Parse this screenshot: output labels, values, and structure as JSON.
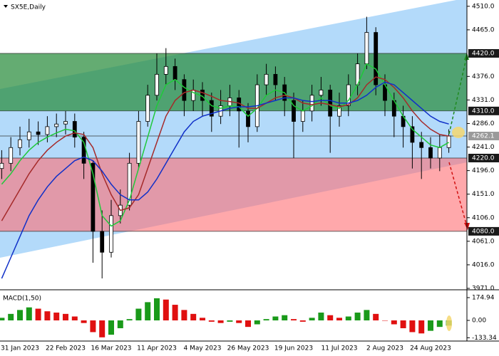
{
  "chart_data": [
    {
      "type": "candlestick",
      "title": "SX5E,Daily",
      "categories": [
        null,
        null,
        "31 Jan 2023",
        null,
        null,
        null,
        null,
        "22 Feb 2023",
        null,
        null,
        null,
        null,
        "16 Mar 2023",
        null,
        null,
        null,
        null,
        "11 Apr 2023",
        null,
        null,
        null,
        null,
        "4 May 2023",
        null,
        null,
        null,
        null,
        "26 May 2023",
        null,
        null,
        null,
        null,
        "19 Jun 2023",
        null,
        null,
        null,
        null,
        "11 Jul 2023",
        null,
        null,
        null,
        null,
        "2 Aug 2023",
        null,
        null,
        null,
        null,
        "24 Aug 2023",
        null,
        null
      ],
      "open": [
        4200,
        4210,
        4240,
        4255,
        4270,
        4265,
        4280,
        4285,
        4290,
        4260,
        4210,
        4080,
        4040,
        4110,
        4130,
        4210,
        4290,
        4340,
        4380,
        4395,
        4370,
        4330,
        4350,
        4330,
        4300,
        4320,
        4335,
        4310,
        4280,
        4360,
        4380,
        4360,
        4330,
        4290,
        4310,
        4340,
        4350,
        4300,
        4320,
        4360,
        4400,
        4460,
        4360,
        4330,
        4300,
        4280,
        4250,
        4240,
        4220,
        4240
      ],
      "high": [
        4235,
        4260,
        4280,
        4295,
        4290,
        4300,
        4305,
        4310,
        4305,
        4270,
        4215,
        4120,
        4140,
        4160,
        4230,
        4310,
        4360,
        4420,
        4430,
        4410,
        4380,
        4370,
        4365,
        4345,
        4350,
        4360,
        4350,
        4325,
        4380,
        4400,
        4395,
        4375,
        4345,
        4330,
        4360,
        4375,
        4360,
        4345,
        4380,
        4420,
        4490,
        4470,
        4380,
        4345,
        4320,
        4300,
        4270,
        4260,
        4265,
        4275
      ],
      "low": [
        4180,
        4195,
        4225,
        4240,
        4245,
        4250,
        4260,
        4265,
        4240,
        4180,
        4020,
        3990,
        4030,
        4095,
        4120,
        4200,
        4280,
        4330,
        4360,
        4350,
        4300,
        4310,
        4300,
        4270,
        4285,
        4300,
        4240,
        4250,
        4270,
        4340,
        4330,
        4300,
        4220,
        4270,
        4290,
        4320,
        4230,
        4280,
        4300,
        4340,
        4390,
        4340,
        4300,
        4260,
        4240,
        4200,
        4180,
        4200,
        4195,
        4230
      ],
      "close": [
        4210,
        4240,
        4255,
        4270,
        4265,
        4280,
        4285,
        4290,
        4260,
        4210,
        4080,
        4040,
        4110,
        4130,
        4210,
        4290,
        4340,
        4380,
        4395,
        4370,
        4330,
        4350,
        4330,
        4300,
        4320,
        4335,
        4310,
        4280,
        4360,
        4380,
        4360,
        4330,
        4290,
        4310,
        4340,
        4350,
        4300,
        4320,
        4360,
        4400,
        4460,
        4360,
        4330,
        4300,
        4280,
        4250,
        4240,
        4220,
        4240,
        4262.1
      ],
      "up_color": "#ffffff",
      "down_color": "#000000",
      "series": [
        {
          "color": "#1fc93a",
          "values": [
            4170,
            4190,
            4215,
            4235,
            4250,
            4260,
            4268,
            4275,
            4272,
            4250,
            4190,
            4110,
            4090,
            4100,
            4140,
            4200,
            4260,
            4320,
            4360,
            4370,
            4355,
            4345,
            4338,
            4320,
            4315,
            4320,
            4318,
            4300,
            4315,
            4340,
            4350,
            4345,
            4320,
            4310,
            4320,
            4335,
            4320,
            4315,
            4330,
            4360,
            4400,
            4390,
            4360,
            4330,
            4300,
            4275,
            4260,
            4245,
            4240,
            4250
          ]
        },
        {
          "color": "#a52a2a",
          "values": [
            4100,
            4130,
            4160,
            4190,
            4215,
            4235,
            4250,
            4262,
            4268,
            4265,
            4240,
            4190,
            4150,
            4120,
            4125,
            4150,
            4200,
            4250,
            4300,
            4330,
            4345,
            4350,
            4345,
            4338,
            4330,
            4328,
            4325,
            4315,
            4315,
            4325,
            4335,
            4340,
            4335,
            4325,
            4322,
            4325,
            4322,
            4318,
            4322,
            4335,
            4360,
            4375,
            4370,
            4355,
            4335,
            4310,
            4290,
            4275,
            4265,
            4262
          ]
        },
        {
          "color": "#1030c8",
          "values": [
            3990,
            4030,
            4070,
            4110,
            4140,
            4165,
            4185,
            4200,
            4215,
            4222,
            4215,
            4195,
            4170,
            4150,
            4140,
            4140,
            4155,
            4180,
            4210,
            4240,
            4270,
            4290,
            4300,
            4305,
            4310,
            4315,
            4318,
            4318,
            4320,
            4325,
            4330,
            4335,
            4335,
            4330,
            4328,
            4330,
            4330,
            4325,
            4325,
            4330,
            4340,
            4355,
            4365,
            4360,
            4345,
            4330,
            4315,
            4300,
            4290,
            4285
          ]
        }
      ],
      "zones": [
        {
          "from": 4310,
          "to": 4420,
          "color": "rgba(40,140,60,0.72)"
        },
        {
          "from": 4080,
          "to": 4220,
          "color": "rgba(255,110,115,0.6)"
        }
      ],
      "levels": [
        {
          "value": 4420,
          "label": "4420.0",
          "color": "#1a1a1a"
        },
        {
          "value": 4310,
          "label": "4310.0",
          "color": "#1a1a1a"
        },
        {
          "value": 4262.1,
          "label": "4262.1",
          "color": "#9a9a9a"
        },
        {
          "value": 4220,
          "label": "4220.0",
          "color": "#1a1a1a"
        },
        {
          "value": 4080,
          "label": "4080.0",
          "color": "#1a1a1a"
        }
      ],
      "ylim": [
        3971,
        4522
      ],
      "yticks": [
        {
          "value": 4510,
          "label": "4510.0"
        },
        {
          "value": 4465,
          "label": "4465.0"
        },
        {
          "value": 4376,
          "label": "4376.0"
        },
        {
          "value": 4331,
          "label": "4331.0"
        },
        {
          "value": 4286,
          "label": "4286.0"
        },
        {
          "value": 4241,
          "label": "4241.0"
        },
        {
          "value": 4196,
          "label": "4196.0"
        },
        {
          "value": 4151,
          "label": "4151.0"
        },
        {
          "value": 4106,
          "label": "4106.0"
        },
        {
          "value": 4061,
          "label": "4061.0"
        },
        {
          "value": 4016,
          "label": "4016.0"
        },
        {
          "value": 3971,
          "label": "3971.0"
        }
      ]
    },
    {
      "type": "histogram-osc",
      "title": "MACD(1,50)",
      "values": [
        20,
        50,
        80,
        100,
        90,
        70,
        60,
        50,
        30,
        -20,
        -90,
        -130,
        -110,
        -60,
        10,
        90,
        140,
        170,
        160,
        120,
        80,
        50,
        20,
        -10,
        -20,
        -10,
        -20,
        -50,
        -30,
        10,
        30,
        40,
        10,
        -10,
        20,
        60,
        40,
        20,
        30,
        60,
        80,
        50,
        0,
        -30,
        -60,
        -90,
        -100,
        -80,
        -50,
        -40
      ],
      "up_color": "#1a9a1a",
      "down_color": "#e01010",
      "ylim": [
        -147.6,
        218.7
      ],
      "yticks": [
        {
          "value": 174.94,
          "label": "174.94"
        },
        {
          "value": 0,
          "label": "0.00"
        },
        {
          "value": -133.34,
          "label": "-133.34"
        }
      ]
    }
  ]
}
